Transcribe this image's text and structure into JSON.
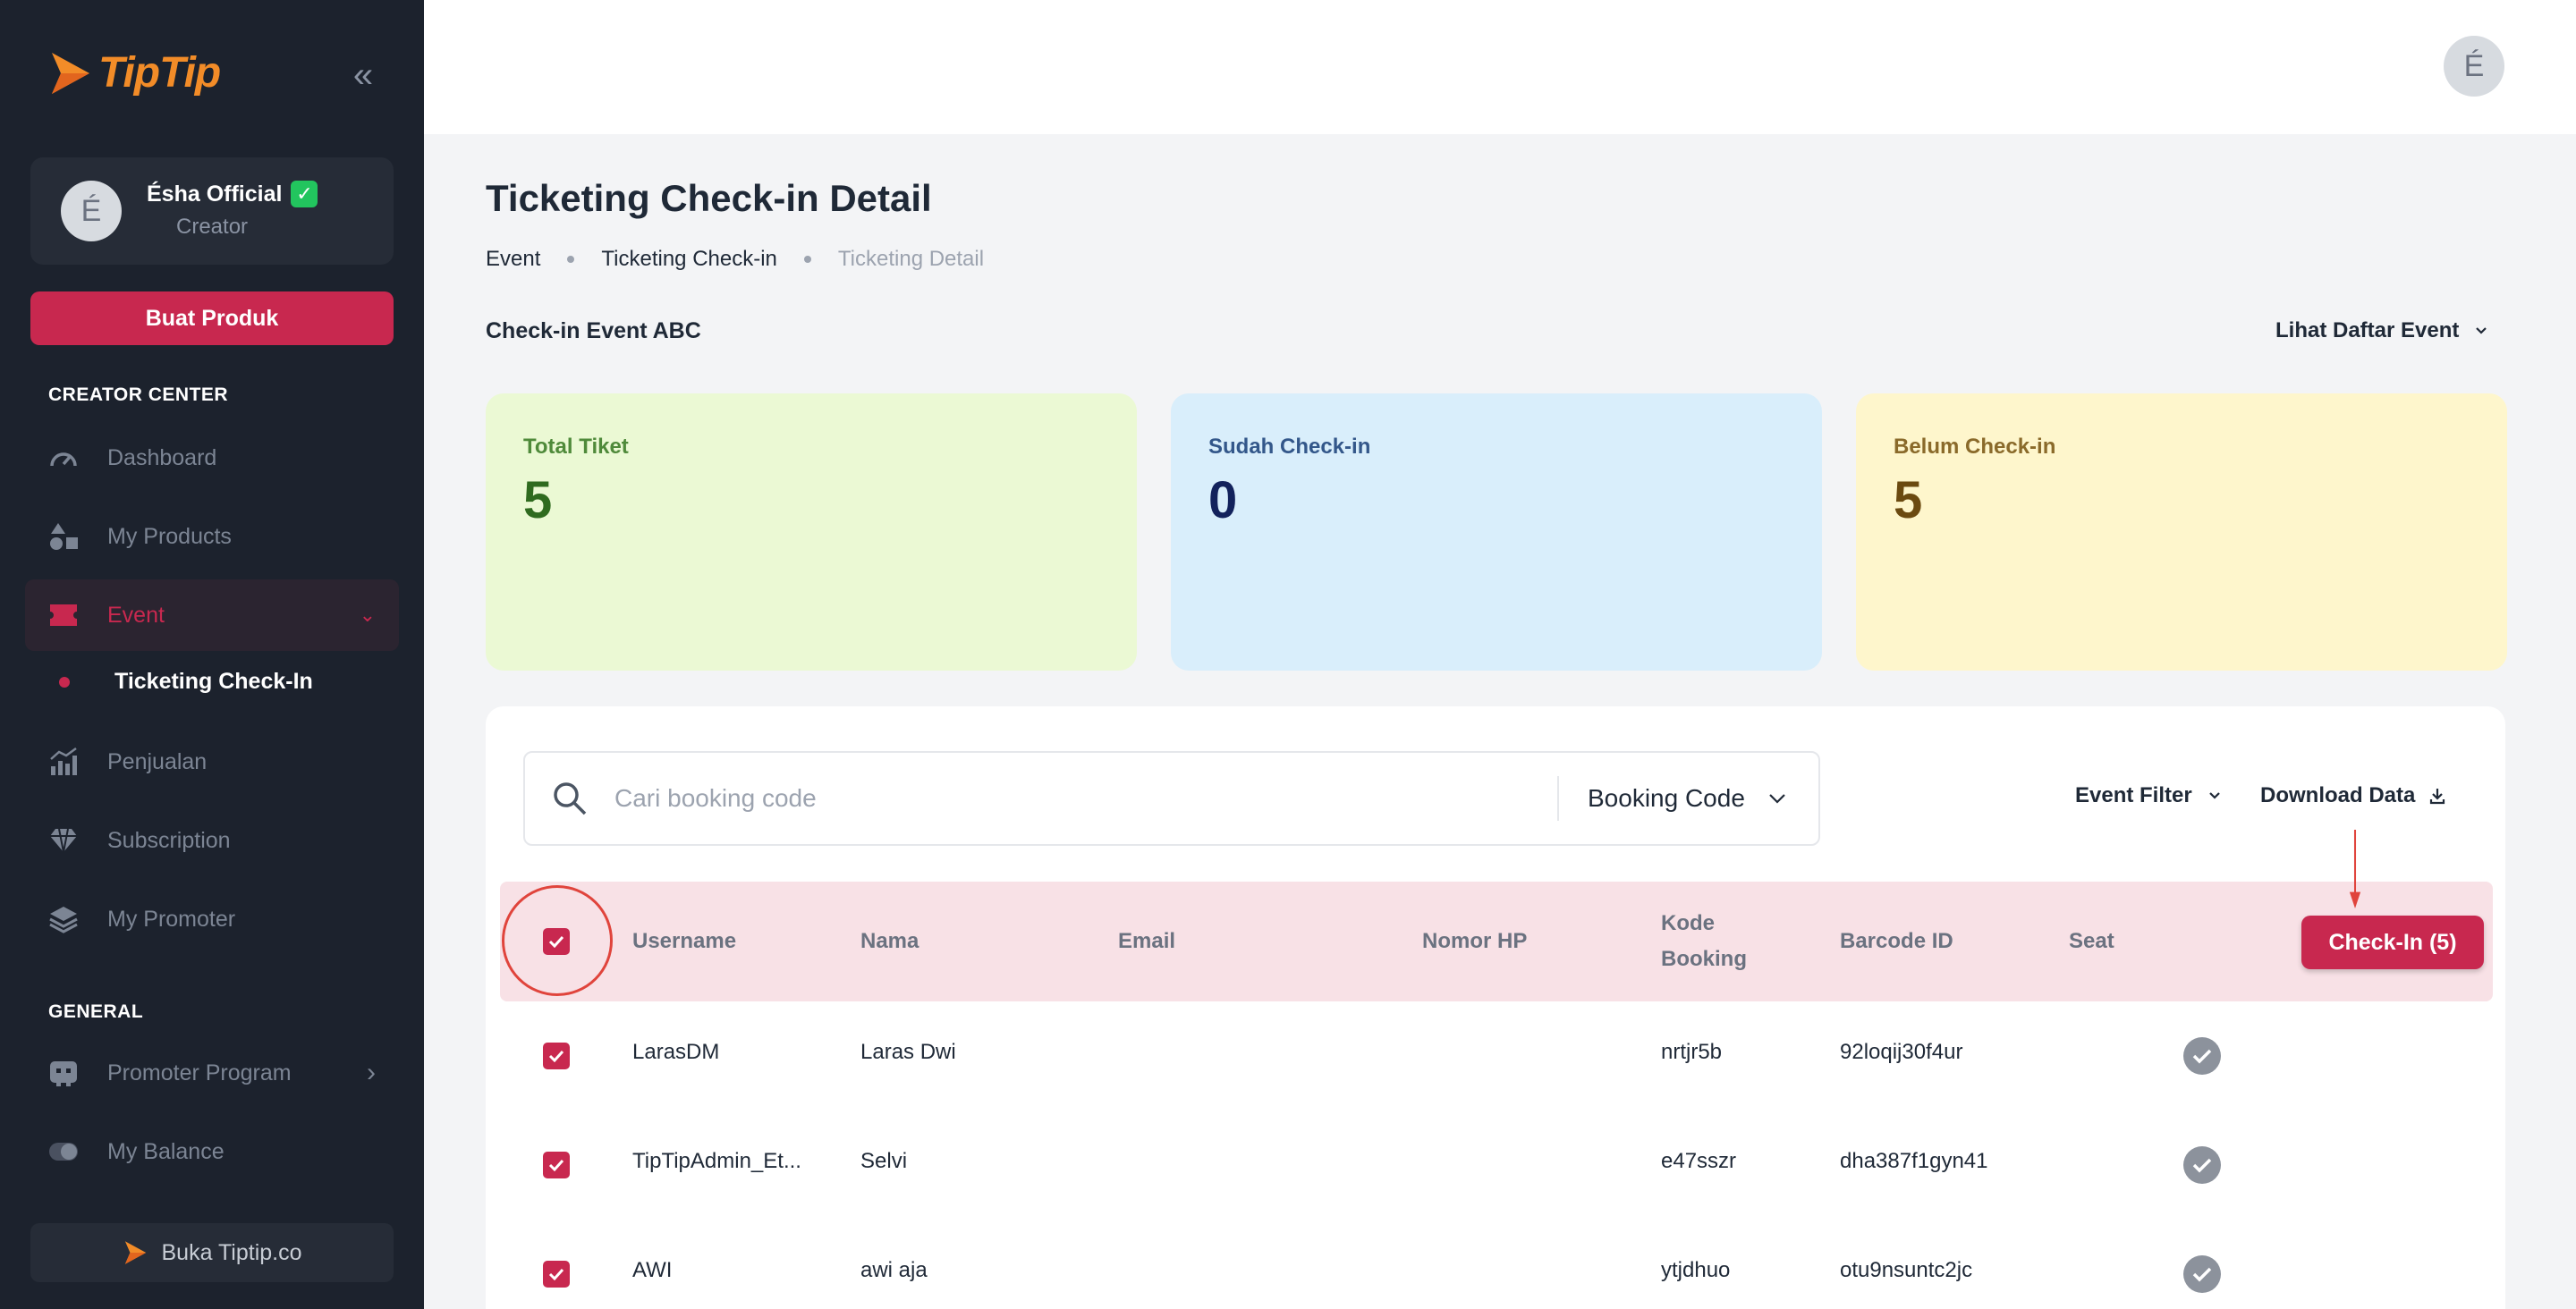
{
  "brand": {
    "name": "TipTip"
  },
  "sidebar": {
    "profile": {
      "initial": "É",
      "name": "Ésha Official",
      "verified_badge": "✓",
      "role": "Creator"
    },
    "create_button": "Buat Produk",
    "sections": {
      "creator_center": "CREATOR CENTER",
      "general": "GENERAL"
    },
    "items": [
      {
        "label": "Dashboard",
        "icon": "gauge-icon"
      },
      {
        "label": "My Products",
        "icon": "shapes-icon"
      },
      {
        "label": "Event",
        "icon": "ticket-icon",
        "active": true
      },
      {
        "label": "Penjualan",
        "icon": "bar-chart-icon"
      },
      {
        "label": "Subscription",
        "icon": "diamond-icon"
      },
      {
        "label": "My Promoter",
        "icon": "layers-icon"
      },
      {
        "label": "Promoter Program",
        "icon": "robot-icon"
      },
      {
        "label": "My Balance",
        "icon": "toggle-icon"
      }
    ],
    "sub_item": "Ticketing Check-In",
    "footer_button": "Buka Tiptip.co"
  },
  "topbar": {
    "avatar_initial": "É"
  },
  "page": {
    "title": "Ticketing Check-in Detail",
    "breadcrumb": [
      "Event",
      "Ticketing Check-in",
      "Ticketing Detail"
    ],
    "event_name": "Check-in Event ABC",
    "event_list_button": "Lihat Daftar Event"
  },
  "stats": [
    {
      "label": "Total Tiket",
      "value": "5",
      "bg": "#ebf9d4",
      "label_color": "#4f8a3a",
      "value_color": "#2f6b1f"
    },
    {
      "label": "Sudah Check-in",
      "value": "0",
      "bg": "#d9eefb",
      "label_color": "#33578a",
      "value_color": "#13225c"
    },
    {
      "label": "Belum Check-in",
      "value": "5",
      "bg": "#fef6cc",
      "label_color": "#8a6a2a",
      "value_color": "#6b4a10"
    }
  ],
  "search": {
    "placeholder": "Cari booking code",
    "value": "",
    "select_value": "Booking Code"
  },
  "toolbar": {
    "event_filter": "Event Filter",
    "download": "Download Data"
  },
  "table": {
    "headers": {
      "username": "Username",
      "nama": "Nama",
      "email": "Email",
      "nomor_hp": "Nomor HP",
      "kode_booking_1": "Kode",
      "kode_booking_2": "Booking",
      "barcode": "Barcode ID",
      "seat": "Seat"
    },
    "checkin_button": "Check-In (5)",
    "rows": [
      {
        "username": "LarasDM",
        "nama": "Laras Dwi",
        "email": "",
        "nomor_hp": "",
        "kode_booking": "nrtjr5b",
        "barcode": "92loqij30f4ur",
        "checked": true
      },
      {
        "username": "TipTipAdmin_Et...",
        "nama": "Selvi",
        "email": "",
        "nomor_hp": "",
        "kode_booking": "e47sszr",
        "barcode": "dha387f1gyn41",
        "checked": true
      },
      {
        "username": "AWI",
        "nama": "awi aja",
        "email": "",
        "nomor_hp": "",
        "kode_booking": "ytjdhuo",
        "barcode": "otu9nsuntc2jc",
        "checked": true
      }
    ]
  },
  "colors": {
    "primary": "#c8284f",
    "sidebar_bg": "#1c222d",
    "annotation": "#e0443c"
  }
}
